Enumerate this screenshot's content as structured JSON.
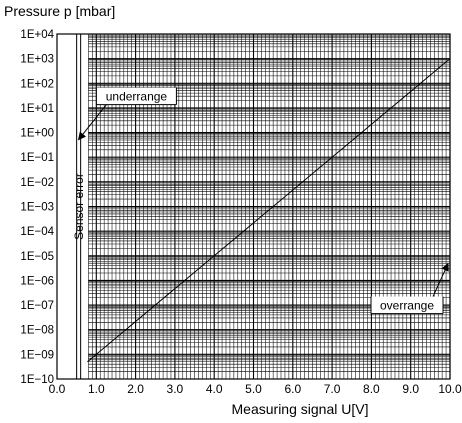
{
  "chart_data": {
    "type": "line",
    "title": "",
    "ylabel": "Pressure p [mbar]",
    "xlabel": "Measuring signal U[V]",
    "yscale": "log",
    "xlim": [
      0.0,
      10.0
    ],
    "ylim_exponent": [
      -10,
      4
    ],
    "x_ticks": [
      "0.0",
      "1.0",
      "2.0",
      "3.0",
      "4.0",
      "5.0",
      "6.0",
      "7.0",
      "8.0",
      "9.0",
      "10.0"
    ],
    "y_ticks": [
      "1E−10",
      "1E−09",
      "1E−08",
      "1E−07",
      "1E−06",
      "1E−05",
      "1E−04",
      "1E−03",
      "1E−02",
      "1E−01",
      "1E+00",
      "1E+01",
      "1E+02",
      "1E+03",
      "1E+04"
    ],
    "grid": true,
    "series": [
      {
        "x": [
          0.774,
          10.0
        ],
        "y": [
          5e-10,
          1000.0
        ]
      }
    ],
    "regions": [
      {
        "label": "Sensor error",
        "x_range": [
          0.0,
          0.5
        ]
      }
    ],
    "annotations": [
      {
        "text": "underrange",
        "x": 0.774,
        "y": 1.0
      },
      {
        "text": "overrange",
        "x": 10.0,
        "y": 1e-05
      }
    ]
  },
  "colors": {
    "axis": "#000000",
    "grid": "#000000",
    "line": "#000000",
    "background": "#ffffff"
  }
}
